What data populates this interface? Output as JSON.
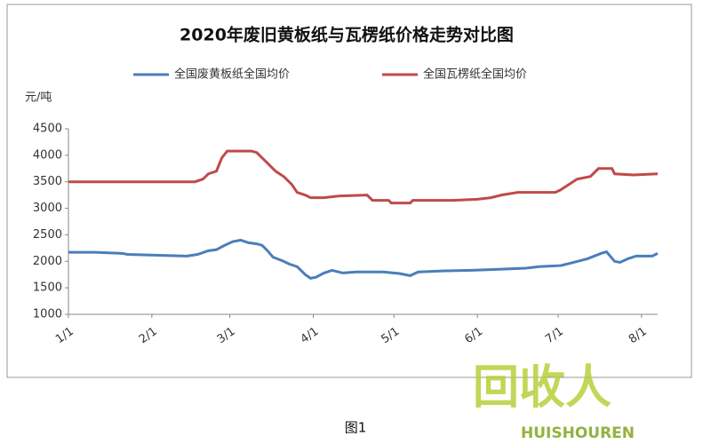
{
  "chart_data": {
    "type": "line",
    "title": "2020年废旧黄板纸与瓦楞纸价格走势对比图",
    "y_label": "元/吨",
    "caption": "图1",
    "xlim": [
      0,
      219
    ],
    "xticks": [
      {
        "value": 0,
        "label": "1/1"
      },
      {
        "value": 31,
        "label": "2/1"
      },
      {
        "value": 60,
        "label": "3/1"
      },
      {
        "value": 91,
        "label": "4/1"
      },
      {
        "value": 121,
        "label": "5/1"
      },
      {
        "value": 152,
        "label": "6/1"
      },
      {
        "value": 182,
        "label": "7/1"
      },
      {
        "value": 213,
        "label": "8/1"
      }
    ],
    "ylim": [
      1000,
      4500
    ],
    "yticks": [
      1000,
      1500,
      2000,
      2500,
      3000,
      3500,
      4000,
      4500
    ],
    "series": [
      {
        "name": "全国废黄板纸全国均价",
        "color": "#4a7ebb",
        "x": [
          0,
          10,
          20,
          22,
          44,
          48,
          52,
          55,
          58,
          61,
          64,
          67,
          70,
          72,
          74,
          76,
          80,
          82,
          85,
          88,
          90,
          92,
          95,
          98,
          102,
          107,
          117,
          123,
          127,
          130,
          140,
          150,
          160,
          170,
          175,
          183,
          187,
          193,
          198,
          200,
          203,
          205,
          208,
          211,
          217,
          219
        ],
        "values": [
          2170,
          2170,
          2150,
          2130,
          2100,
          2130,
          2200,
          2220,
          2300,
          2370,
          2400,
          2350,
          2330,
          2300,
          2200,
          2080,
          2000,
          1950,
          1900,
          1750,
          1680,
          1700,
          1780,
          1830,
          1780,
          1800,
          1800,
          1770,
          1730,
          1800,
          1820,
          1830,
          1850,
          1870,
          1900,
          1920,
          1970,
          2050,
          2150,
          2180,
          2000,
          1980,
          2050,
          2100,
          2100,
          2150
        ]
      },
      {
        "name": "全国瓦楞纸全国均价",
        "color": "#be4b48",
        "x": [
          0,
          47,
          50,
          52,
          55,
          57,
          59,
          68,
          70,
          72,
          74,
          77,
          80,
          83,
          85,
          88,
          90,
          95,
          100,
          111,
          113,
          119,
          120,
          127,
          128,
          143,
          152,
          157,
          161,
          167,
          181,
          183,
          186,
          189,
          194,
          197,
          202,
          203,
          210,
          219
        ],
        "values": [
          3500,
          3500,
          3550,
          3650,
          3700,
          3950,
          4080,
          4080,
          4050,
          3950,
          3850,
          3700,
          3600,
          3450,
          3300,
          3250,
          3200,
          3200,
          3230,
          3250,
          3150,
          3150,
          3100,
          3100,
          3150,
          3150,
          3170,
          3200,
          3250,
          3300,
          3300,
          3350,
          3450,
          3550,
          3600,
          3750,
          3750,
          3650,
          3630,
          3650
        ]
      }
    ]
  },
  "watermark": {
    "logo": "回收人",
    "brand": "HUISHOUREN"
  }
}
